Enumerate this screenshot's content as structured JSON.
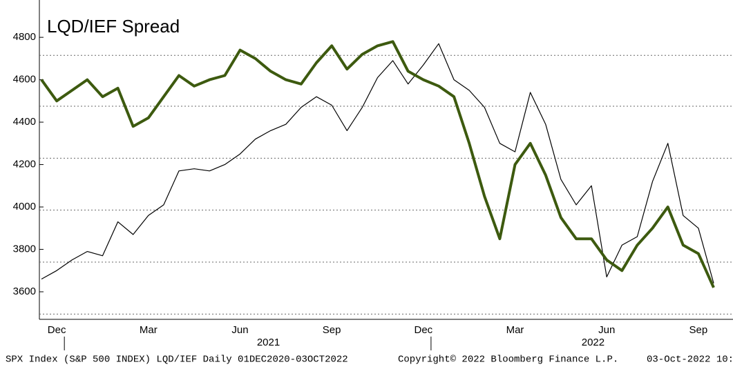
{
  "chart_data": {
    "type": "line",
    "title": "LQD/IEF Spread",
    "categories": [
      null,
      "Dec",
      null,
      null,
      null,
      null,
      null,
      "Mar",
      null,
      null,
      null,
      null,
      null,
      "Jun",
      null,
      null,
      null,
      null,
      null,
      "Sep",
      null,
      null,
      null,
      null,
      null,
      "Dec",
      null,
      null,
      null,
      null,
      null,
      "Mar",
      null,
      null,
      null,
      null,
      null,
      "Jun",
      null,
      null,
      null,
      null,
      null,
      "Sep",
      null
    ],
    "x_groups": [
      {
        "label": "2021",
        "from": 2
      },
      {
        "label": "2022",
        "from": 26
      }
    ],
    "series": [
      {
        "color": "#000000",
        "width": 1.2,
        "values": [
          3660,
          3700,
          3750,
          3790,
          3770,
          3930,
          3870,
          3960,
          4010,
          4170,
          4180,
          4170,
          4200,
          4250,
          4320,
          4360,
          4390,
          4470,
          4520,
          4480,
          4360,
          4470,
          4610,
          4690,
          4580,
          4670,
          4770,
          4600,
          4550,
          4470,
          4300,
          4260,
          4540,
          4390,
          4130,
          4010,
          4100,
          3670,
          3820,
          3860,
          4120,
          4300,
          3960,
          3900,
          3640
        ]
      },
      {
        "color": "#3d5a0f",
        "width": 4,
        "values": [
          4600,
          4500,
          4550,
          4600,
          4520,
          4560,
          4380,
          4420,
          4520,
          4620,
          4570,
          4600,
          4620,
          4740,
          4700,
          4640,
          4600,
          4580,
          4680,
          4760,
          4650,
          4720,
          4760,
          4780,
          4640,
          4600,
          4570,
          4520,
          4300,
          4050,
          3850,
          4200,
          4300,
          4150,
          3950,
          3850,
          3850,
          3750,
          3700,
          3820,
          3900,
          4000,
          3820,
          3780,
          3620
        ]
      }
    ],
    "ylim": [
      3470,
      4950
    ],
    "yticks": [
      3600,
      3800,
      4000,
      4200,
      4400,
      4600,
      4800
    ],
    "gridlines": [
      3495,
      3740,
      3985,
      4230,
      4475,
      4715
    ],
    "footer": [
      "SPX Index (S&P 500 INDEX) LQD/IEF  Daily 01DEC2020-03OCT2022",
      "Copyright© 2022 Bloomberg Finance L.P.",
      "03-Oct-2022 10:"
    ]
  }
}
